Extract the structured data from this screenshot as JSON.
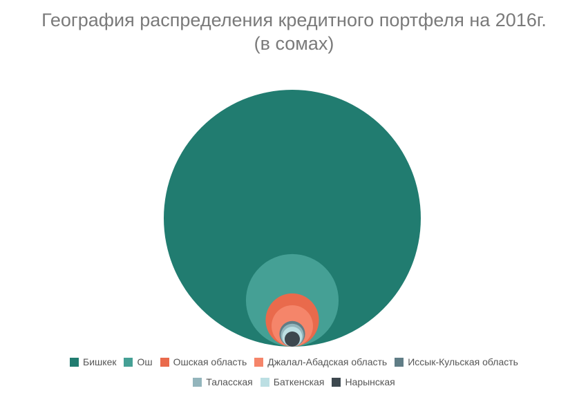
{
  "chart_data": {
    "type": "nested-circles",
    "title": "География распределения кредитного портфеля на 2016г.",
    "subtitle": "(в сомах)",
    "categories": [
      "Бишкек",
      "Ош",
      "Ошская область",
      "Джалал-Абадская область",
      "Иссык-Кульская область",
      "Таласская",
      "Баткенская",
      "Нарынская"
    ],
    "values": [
      100,
      13.0,
      4.3,
      2.6,
      1.0,
      0.8,
      0.6,
      0.35
    ],
    "colors": [
      "#217c70",
      "#45a095",
      "#e96a4c",
      "#f5856a",
      "#607d86",
      "#93b5bc",
      "#bcdfe3",
      "#3d484f"
    ],
    "legend_position": "bottom"
  }
}
